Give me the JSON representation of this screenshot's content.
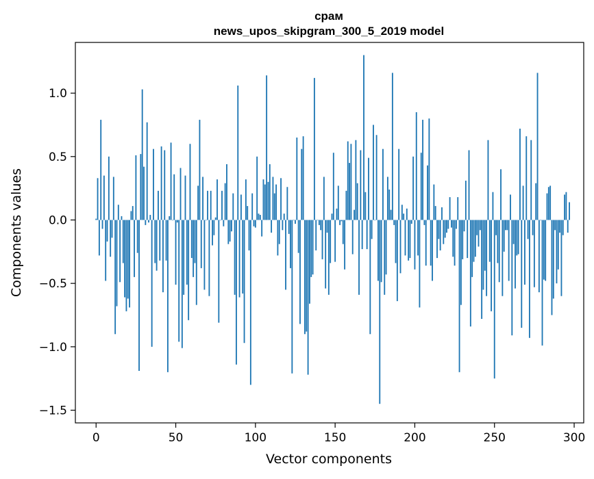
{
  "chart_data": {
    "type": "bar",
    "title": "срам",
    "subtitle": "news_upos_skipgram_300_5_2019 model",
    "xlabel": "Vector components",
    "ylabel": "Components values",
    "xlim": [
      -13,
      306
    ],
    "ylim": [
      -1.6,
      1.4
    ],
    "xticks": [
      0,
      50,
      100,
      150,
      200,
      250,
      300
    ],
    "xtick_labels": [
      "0",
      "50",
      "100",
      "150",
      "200",
      "250",
      "300"
    ],
    "yticks": [
      -1.5,
      -1.0,
      -0.5,
      0.0,
      0.5,
      1.0
    ],
    "ytick_labels": [
      "−1.5",
      "−1.0",
      "−0.5",
      "0.0",
      "0.5",
      "1.0"
    ],
    "grid": false,
    "bar_color": "#1f77b4",
    "values": [
      0.01,
      0.33,
      -0.28,
      0.79,
      -0.07,
      0.35,
      -0.48,
      -0.17,
      0.5,
      -0.29,
      -0.14,
      0.34,
      -0.9,
      -0.68,
      0.12,
      -0.49,
      0.03,
      -0.34,
      -0.61,
      -0.72,
      -0.62,
      -0.69,
      0.07,
      0.11,
      -0.45,
      0.51,
      -0.26,
      -1.19,
      0.52,
      1.03,
      0.42,
      -0.04,
      0.77,
      -0.02,
      0.04,
      -1.0,
      0.56,
      -0.34,
      -0.4,
      0.23,
      -0.32,
      0.58,
      -0.57,
      0.55,
      -0.32,
      -1.2,
      0.03,
      0.61,
      0.0,
      0.36,
      -0.51,
      -0.02,
      -0.96,
      0.41,
      -1.01,
      -0.59,
      0.35,
      -0.51,
      -0.79,
      0.6,
      -0.3,
      -0.45,
      -0.34,
      -0.67,
      0.27,
      0.79,
      -0.38,
      0.34,
      -0.55,
      0.0,
      0.23,
      -0.6,
      0.23,
      -0.2,
      -0.12,
      0.02,
      0.32,
      -0.81,
      0.0,
      0.23,
      -0.05,
      0.29,
      0.44,
      -0.19,
      -0.17,
      -0.09,
      0.21,
      -0.59,
      -1.14,
      1.06,
      -0.61,
      0.2,
      -0.58,
      -0.97,
      0.32,
      0.11,
      -0.24,
      -1.3,
      0.21,
      -0.05,
      -0.06,
      0.5,
      0.05,
      0.04,
      -0.13,
      0.32,
      0.28,
      1.14,
      0.3,
      0.44,
      -0.1,
      0.34,
      0.21,
      0.28,
      -0.28,
      -0.19,
      0.33,
      -0.08,
      0.05,
      -0.55,
      0.26,
      -0.11,
      -0.38,
      -1.21,
      0.0,
      -0.03,
      0.65,
      -0.26,
      -0.82,
      0.56,
      0.66,
      -0.9,
      -0.88,
      -1.22,
      -0.66,
      -0.45,
      -0.43,
      1.12,
      -0.24,
      0.0,
      -0.04,
      -0.08,
      -0.31,
      0.34,
      -0.54,
      -0.1,
      -0.59,
      -0.34,
      0.05,
      0.53,
      -0.33,
      0.09,
      0.27,
      -0.04,
      -0.01,
      -0.19,
      -0.39,
      0.23,
      0.62,
      0.45,
      0.6,
      -0.27,
      0.08,
      0.63,
      0.29,
      -0.59,
      0.55,
      -0.23,
      1.3,
      0.22,
      -0.23,
      0.49,
      -0.9,
      -0.15,
      0.75,
      0.0,
      0.67,
      -0.48,
      -1.45,
      -0.49,
      0.56,
      -0.59,
      -0.43,
      0.34,
      0.24,
      0.08,
      1.16,
      -0.04,
      -0.34,
      -0.64,
      0.56,
      -0.42,
      0.12,
      0.05,
      -0.28,
      0.09,
      -0.32,
      -0.3,
      -0.03,
      0.5,
      -0.39,
      0.85,
      -0.28,
      -0.69,
      0.53,
      0.79,
      -0.04,
      -0.36,
      0.43,
      0.8,
      -0.36,
      -0.48,
      0.28,
      0.11,
      -0.3,
      -0.15,
      -0.24,
      0.1,
      -0.19,
      -0.14,
      -0.1,
      -0.07,
      0.18,
      -0.06,
      -0.29,
      -0.36,
      -0.07,
      0.18,
      -1.2,
      -0.67,
      -0.31,
      -0.09,
      0.31,
      -0.3,
      0.55,
      -0.84,
      -0.45,
      -0.33,
      -0.29,
      -0.12,
      -0.21,
      -0.08,
      -0.78,
      -0.55,
      -0.4,
      -0.6,
      0.63,
      -0.33,
      -0.72,
      0.22,
      -1.25,
      -0.12,
      -0.34,
      -0.49,
      0.4,
      -0.6,
      -0.25,
      -0.08,
      -0.08,
      -0.48,
      0.2,
      -0.91,
      -0.19,
      -0.54,
      -0.28,
      -0.27,
      0.72,
      -0.85,
      0.27,
      -0.51,
      0.66,
      -0.15,
      -0.93,
      0.63,
      -0.12,
      -0.53,
      0.29,
      1.16,
      -0.57,
      0.0,
      -0.99,
      -0.47,
      -0.48,
      0.21,
      0.26,
      0.27,
      -0.75,
      -0.62,
      -0.08,
      -0.5,
      -0.39,
      -0.1,
      -0.6,
      -0.12,
      0.2,
      0.22,
      -0.1,
      0.14
    ]
  }
}
